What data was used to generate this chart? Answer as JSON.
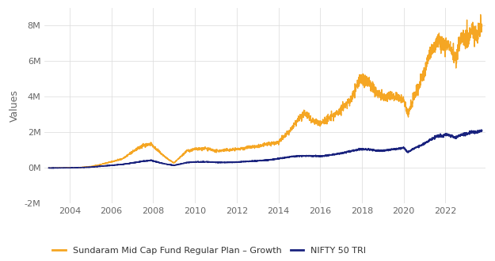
{
  "title": "",
  "ylabel": "Values",
  "xlabel": "",
  "background_color": "#ffffff",
  "grid_color": "#e0e0e0",
  "plot_bg_color": "#ffffff",
  "ylim": [
    -2000000,
    9000000
  ],
  "xlim_start": 2002.8,
  "xlim_end": 2023.9,
  "yticks": [
    -2000000,
    0,
    2000000,
    4000000,
    6000000,
    8000000
  ],
  "ytick_labels": [
    "-2M",
    "0M",
    "2M",
    "4M",
    "6M",
    "8M"
  ],
  "xticks": [
    2004,
    2006,
    2008,
    2010,
    2012,
    2014,
    2016,
    2018,
    2020,
    2022
  ],
  "fund_color": "#f5a623",
  "nifty_color": "#1a237e",
  "legend_fund": "Sundaram Mid Cap Fund Regular Plan – Growth",
  "legend_nifty": "NIFTY 50 TRI",
  "fund_lw": 1.0,
  "nifty_lw": 1.2,
  "ylabel_fontsize": 9,
  "tick_fontsize": 8,
  "legend_fontsize": 8,
  "fund_keypoints": {
    "2003.0": 0,
    "2003.5": 10000,
    "2004.0": 20000,
    "2004.5": 30000,
    "2005.0": 80000,
    "2005.5": 200000,
    "2006.0": 350000,
    "2006.5": 500000,
    "2007.0": 900000,
    "2007.5": 1250000,
    "2007.9": 1350000,
    "2008.3": 900000,
    "2008.7": 500000,
    "2009.0": 280000,
    "2009.3": 600000,
    "2009.6": 950000,
    "2010.0": 1050000,
    "2010.5": 1100000,
    "2011.0": 950000,
    "2011.5": 1000000,
    "2012.0": 1050000,
    "2012.5": 1150000,
    "2013.0": 1200000,
    "2013.5": 1350000,
    "2014.0": 1450000,
    "2014.5": 2000000,
    "2015.0": 2800000,
    "2015.3": 3100000,
    "2015.6": 2700000,
    "2016.0": 2500000,
    "2016.3": 2700000,
    "2016.7": 3000000,
    "2017.0": 3300000,
    "2017.5": 3900000,
    "2017.9": 5000000,
    "2018.3": 4800000,
    "2018.7": 4300000,
    "2019.0": 3900000,
    "2019.3": 4100000,
    "2019.7": 4000000,
    "2020.0": 3800000,
    "2020.2": 3000000,
    "2020.5": 4000000,
    "2020.8": 4800000,
    "2021.0": 5500000,
    "2021.3": 6500000,
    "2021.6": 7200000,
    "2021.9": 6800000,
    "2022.2": 7000000,
    "2022.5": 6000000,
    "2022.7": 7200000,
    "2022.9": 7500000,
    "2023.1": 7200000,
    "2023.3": 7800000,
    "2023.5": 7400000,
    "2023.7": 8000000
  },
  "nifty_keypoints": {
    "2003.0": 0,
    "2003.5": 5000,
    "2004.0": 10000,
    "2004.5": 20000,
    "2005.0": 50000,
    "2005.5": 100000,
    "2006.0": 150000,
    "2006.5": 200000,
    "2007.0": 280000,
    "2007.5": 380000,
    "2007.9": 430000,
    "2008.3": 300000,
    "2008.7": 200000,
    "2009.0": 150000,
    "2009.3": 220000,
    "2009.6": 300000,
    "2010.0": 340000,
    "2010.5": 350000,
    "2011.0": 320000,
    "2011.5": 310000,
    "2012.0": 330000,
    "2012.5": 370000,
    "2013.0": 400000,
    "2013.5": 450000,
    "2014.0": 520000,
    "2014.5": 620000,
    "2015.0": 680000,
    "2015.5": 680000,
    "2016.0": 660000,
    "2016.5": 730000,
    "2017.0": 830000,
    "2017.5": 950000,
    "2017.9": 1050000,
    "2018.3": 1050000,
    "2018.7": 980000,
    "2019.0": 970000,
    "2019.5": 1050000,
    "2019.9": 1100000,
    "2020.0": 1150000,
    "2020.2": 880000,
    "2020.5": 1100000,
    "2020.8": 1250000,
    "2021.0": 1380000,
    "2021.3": 1600000,
    "2021.6": 1800000,
    "2021.9": 1800000,
    "2022.0": 1900000,
    "2022.3": 1800000,
    "2022.5": 1700000,
    "2022.7": 1850000,
    "2022.9": 1900000,
    "2023.1": 1950000,
    "2023.3": 2050000,
    "2023.5": 2000000,
    "2023.7": 2100000
  }
}
